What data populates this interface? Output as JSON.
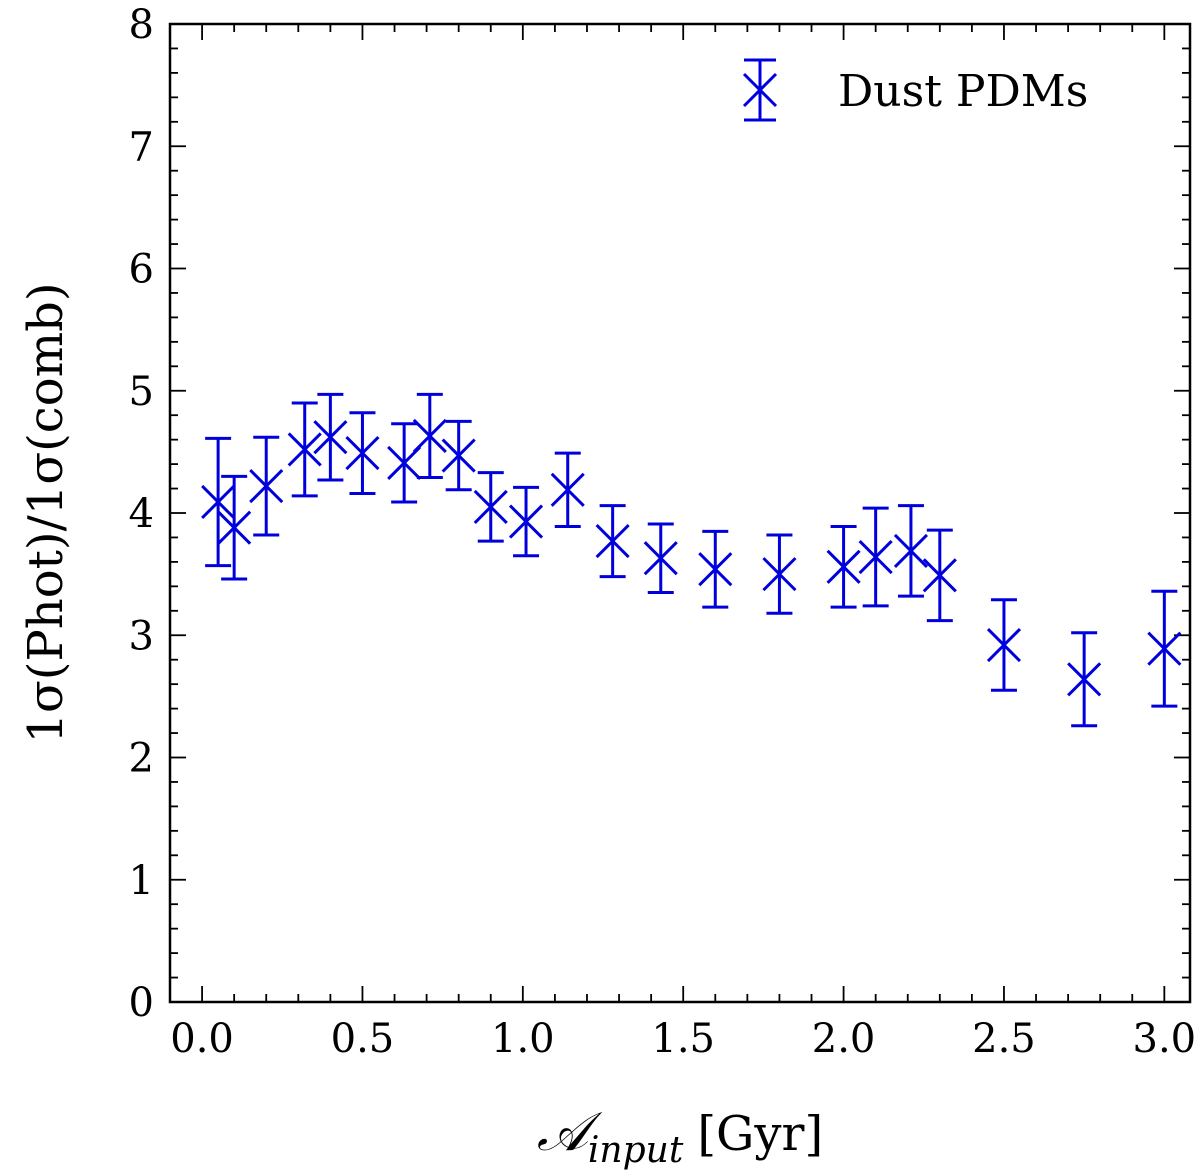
{
  "chart_data": {
    "type": "scatter",
    "title": "",
    "xlabel_main": "𝒜",
    "xlabel_sub": "input",
    "xlabel_unit": "[Gyr]",
    "ylabel": "1σ(Phot)/1σ(comb)",
    "xlim": [
      -0.1,
      3.08
    ],
    "ylim": [
      0,
      8
    ],
    "xticks": [
      0.0,
      0.5,
      1.0,
      1.5,
      2.0,
      2.5,
      3.0
    ],
    "xtick_labels": [
      "0.0",
      "0.5",
      "1.0",
      "1.5",
      "2.0",
      "2.5",
      "3.0"
    ],
    "yticks": [
      0,
      1,
      2,
      3,
      4,
      5,
      6,
      7,
      8
    ],
    "ytick_labels": [
      "0",
      "1",
      "2",
      "3",
      "4",
      "5",
      "6",
      "7",
      "8"
    ],
    "grid": false,
    "legend_position": "top-right",
    "series": [
      {
        "name": "Dust PDMs",
        "color": "#0000dd",
        "marker": "x",
        "x": [
          0.05,
          0.1,
          0.2,
          0.32,
          0.4,
          0.5,
          0.63,
          0.71,
          0.8,
          0.9,
          1.01,
          1.14,
          1.28,
          1.43,
          1.6,
          1.8,
          2.0,
          2.1,
          2.21,
          2.3,
          2.5,
          2.75,
          3.0
        ],
        "y": [
          4.09,
          3.88,
          4.22,
          4.52,
          4.62,
          4.49,
          4.41,
          4.63,
          4.47,
          4.05,
          3.93,
          4.19,
          3.77,
          3.63,
          3.54,
          3.5,
          3.56,
          3.64,
          3.69,
          3.49,
          2.92,
          2.64,
          2.89
        ],
        "y_err": [
          0.52,
          0.42,
          0.4,
          0.38,
          0.35,
          0.33,
          0.32,
          0.34,
          0.28,
          0.28,
          0.28,
          0.3,
          0.29,
          0.28,
          0.31,
          0.32,
          0.33,
          0.4,
          0.37,
          0.37,
          0.37,
          0.38,
          0.47
        ]
      }
    ]
  }
}
